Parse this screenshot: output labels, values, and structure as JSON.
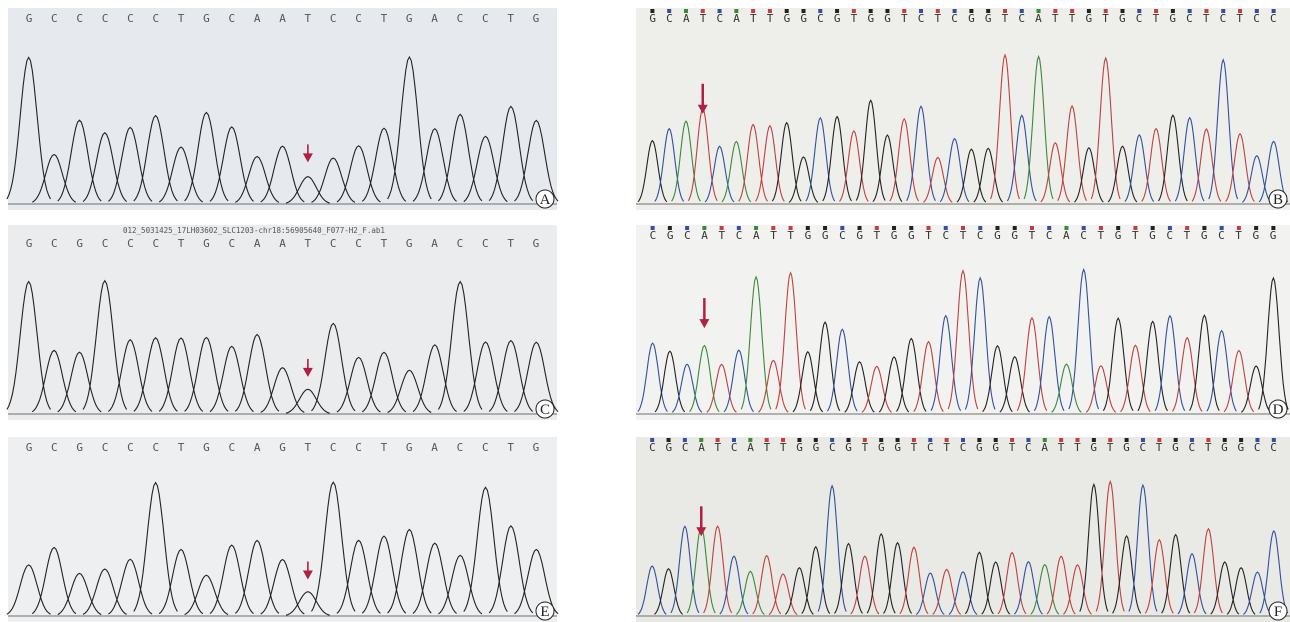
{
  "panels": [
    {
      "label": "A",
      "sequence": "GCCCCCTGCAATCCTGACCTG"
    },
    {
      "label": "B",
      "sequence": "GCATCATTGGCGTGGTCTCGGTCATTGTGCTGCTCTCC"
    },
    {
      "label": "C",
      "header": "012_5031425_17LH03602_SLC1203-chr18:56905640_F077-H2_F.ab1",
      "sequence": "GCGCCCTGCAATCCTGACCTG"
    },
    {
      "label": "D",
      "sequence": "CGCATCATTGGCGTGGTCTCGGTCACTGTGCTGCTGG"
    },
    {
      "label": "E",
      "sequence": "GCGCCCTGCAGTCCTGACCTG"
    },
    {
      "label": "F",
      "sequence": "CGCATCATTGGCGTGGTCTCGGTCATTGTGCTGCTGGCC"
    }
  ]
}
